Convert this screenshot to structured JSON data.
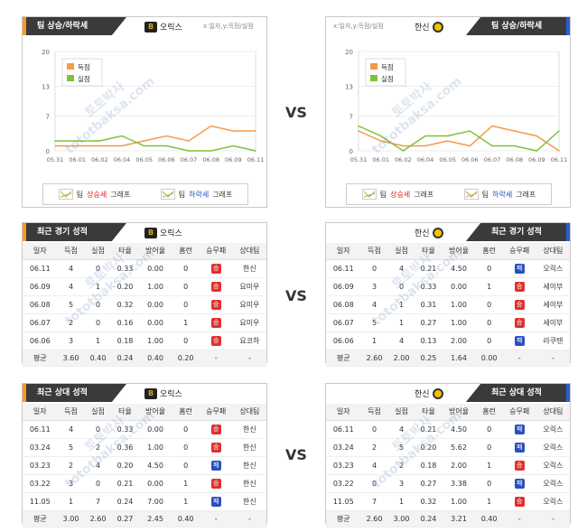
{
  "vs_label": "VS",
  "watermark": "tototbaksa.com",
  "watermark2": "토토박사",
  "trend": {
    "left": {
      "title": "팀 상승/하락세",
      "team": "오릭스",
      "logo": "B",
      "axis_note": "x:일자,y:득점/실점",
      "legend_score": "득점",
      "legend_allowed": "실점",
      "foot_up_prefix": "팀",
      "foot_up_word": "상승세",
      "foot_up_suffix": "그래프",
      "foot_down_prefix": "팀",
      "foot_down_word": "하락세",
      "foot_down_suffix": "그래프"
    },
    "right": {
      "title": "팀 상승/하락세",
      "team": "한신",
      "axis_note": "x:일자,y:득점/실점",
      "legend_score": "득점",
      "legend_allowed": "실점",
      "foot_up_prefix": "팀",
      "foot_up_word": "상승세",
      "foot_up_suffix": "그래프",
      "foot_down_prefix": "팀",
      "foot_down_word": "하락세",
      "foot_down_suffix": "그래프"
    }
  },
  "chart_data": [
    {
      "type": "line",
      "title": "팀 상승/하락세",
      "categories": [
        "05.31",
        "06.01",
        "06.02",
        "06.04",
        "06.05",
        "06.06",
        "06.07",
        "06.08",
        "06.09",
        "06.11"
      ],
      "ylim": [
        0,
        20
      ],
      "yticks": [
        0,
        7,
        13,
        20
      ],
      "series": [
        {
          "name": "득점",
          "color": "#f59a4a",
          "values": [
            1,
            1,
            1,
            1,
            2,
            3,
            2,
            5,
            4,
            4
          ]
        },
        {
          "name": "실점",
          "color": "#7cc23a",
          "values": [
            2,
            2,
            2,
            3,
            1,
            1,
            0,
            0,
            1,
            0
          ]
        }
      ]
    },
    {
      "type": "line",
      "title": "팀 상승/하락세",
      "categories": [
        "05.31",
        "06.01",
        "06.02",
        "06.04",
        "06.05",
        "06.06",
        "06.07",
        "06.08",
        "06.09",
        "06.11"
      ],
      "ylim": [
        0,
        20
      ],
      "yticks": [
        0,
        7,
        13,
        20
      ],
      "series": [
        {
          "name": "득점",
          "color": "#f59a4a",
          "values": [
            4,
            2,
            1,
            1,
            2,
            1,
            5,
            4,
            3,
            0
          ]
        },
        {
          "name": "실점",
          "color": "#7cc23a",
          "values": [
            5,
            3,
            0,
            3,
            3,
            4,
            1,
            1,
            0,
            4
          ]
        }
      ]
    }
  ],
  "columns": [
    "일자",
    "득점",
    "실점",
    "타율",
    "방어율",
    "홈런",
    "승무패",
    "상대팀"
  ],
  "recent": {
    "left": {
      "title": "최근 경기 성적",
      "team": "오릭스",
      "rows": [
        [
          "06.11",
          "4",
          "0",
          "0.33",
          "0.00",
          "0",
          "승",
          "한신"
        ],
        [
          "06.09",
          "4",
          "1",
          "0.20",
          "1.00",
          "0",
          "승",
          "요미우"
        ],
        [
          "06.08",
          "5",
          "0",
          "0.32",
          "0.00",
          "0",
          "승",
          "요미우"
        ],
        [
          "06.07",
          "2",
          "0",
          "0.16",
          "0.00",
          "1",
          "승",
          "요미우"
        ],
        [
          "06.06",
          "3",
          "1",
          "0.18",
          "1.00",
          "0",
          "승",
          "요코하"
        ]
      ],
      "avg": [
        "평균",
        "3.60",
        "0.40",
        "0.24",
        "0.40",
        "0.20",
        "-",
        "-"
      ]
    },
    "right": {
      "title": "최근 경기 성적",
      "team": "한신",
      "rows": [
        [
          "06.11",
          "0",
          "4",
          "0.21",
          "4.50",
          "0",
          "패",
          "오릭스"
        ],
        [
          "06.09",
          "3",
          "0",
          "0.33",
          "0.00",
          "1",
          "승",
          "세이부"
        ],
        [
          "06.08",
          "4",
          "1",
          "0.31",
          "1.00",
          "0",
          "승",
          "세이부"
        ],
        [
          "06.07",
          "5",
          "1",
          "0.27",
          "1.00",
          "0",
          "승",
          "세이부"
        ],
        [
          "06.06",
          "1",
          "4",
          "0.13",
          "2.00",
          "0",
          "패",
          "라쿠텐"
        ]
      ],
      "avg": [
        "평균",
        "2.60",
        "2.00",
        "0.25",
        "1.64",
        "0.00",
        "-",
        "-"
      ]
    }
  },
  "h2h": {
    "left": {
      "title": "최근 상대 성적",
      "team": "오릭스",
      "rows": [
        [
          "06.11",
          "4",
          "0",
          "0.33",
          "0.00",
          "0",
          "승",
          "한신"
        ],
        [
          "03.24",
          "5",
          "2",
          "0.36",
          "1.00",
          "0",
          "승",
          "한신"
        ],
        [
          "03.23",
          "2",
          "4",
          "0.20",
          "4.50",
          "0",
          "패",
          "한신"
        ],
        [
          "03.22",
          "3",
          "0",
          "0.21",
          "0.00",
          "1",
          "승",
          "한신"
        ],
        [
          "11.05",
          "1",
          "7",
          "0.24",
          "7.00",
          "1",
          "패",
          "한신"
        ]
      ],
      "avg": [
        "평균",
        "3.00",
        "2.60",
        "0.27",
        "2.45",
        "0.40",
        "-",
        "-"
      ]
    },
    "right": {
      "title": "최근 상대 성적",
      "team": "한신",
      "rows": [
        [
          "06.11",
          "0",
          "4",
          "0.21",
          "4.50",
          "0",
          "패",
          "오릭스"
        ],
        [
          "03.24",
          "2",
          "5",
          "0.20",
          "5.62",
          "0",
          "패",
          "오릭스"
        ],
        [
          "03.23",
          "4",
          "2",
          "0.18",
          "2.00",
          "1",
          "승",
          "오릭스"
        ],
        [
          "03.22",
          "0",
          "3",
          "0.27",
          "3.38",
          "0",
          "패",
          "오릭스"
        ],
        [
          "11.05",
          "7",
          "1",
          "0.32",
          "1.00",
          "1",
          "승",
          "오릭스"
        ]
      ],
      "avg": [
        "평균",
        "2.60",
        "3.00",
        "0.24",
        "3.21",
        "0.40",
        "-",
        "-"
      ]
    }
  }
}
